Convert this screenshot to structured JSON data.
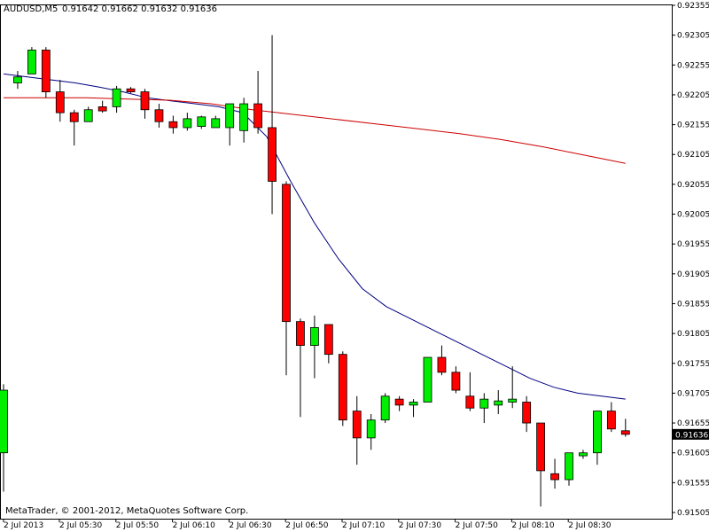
{
  "header": {
    "symbol_tf": "AUDUSD,M5",
    "ohlc": "0.91642 0.91662 0.91632 0.91636"
  },
  "footer": {
    "copyright": "MetaTrader, © 2001-2012, MetaQuotes Software Corp."
  },
  "colors": {
    "bull": "#00ee00",
    "bear": "#ff0000",
    "wick": "#000000",
    "ma_fast": "#000080",
    "ma_slow": "#cc0000",
    "price_tag_bg": "#000000",
    "price_tag_fg": "#ffffff"
  },
  "chart_data": {
    "type": "candlestick",
    "y_ticks": [
      "0.92355",
      "0.92305",
      "0.92255",
      "0.92205",
      "0.92155",
      "0.92105",
      "0.92055",
      "0.92005",
      "0.91955",
      "0.91905",
      "0.91855",
      "0.91805",
      "0.91755",
      "0.91705",
      "0.91655",
      "0.91605",
      "0.91555",
      "0.91505"
    ],
    "ylim": [
      0.91505,
      0.92355
    ],
    "current_price": "0.91636",
    "x_ticks": [
      "2 Jul 2013",
      "2 Jul 05:30",
      "2 Jul 05:50",
      "2 Jul 06:10",
      "2 Jul 06:30",
      "2 Jul 06:50",
      "2 Jul 07:10",
      "2 Jul 07:30",
      "2 Jul 07:50",
      "2 Jul 08:10",
      "2 Jul 08:30"
    ],
    "candles": [
      {
        "o": 0.91605,
        "h": 0.9172,
        "l": 0.9154,
        "c": 0.9171
      },
      {
        "o": 0.92225,
        "h": 0.92245,
        "l": 0.92215,
        "c": 0.92235
      },
      {
        "o": 0.9224,
        "h": 0.92285,
        "l": 0.9224,
        "c": 0.9228
      },
      {
        "o": 0.9228,
        "h": 0.92285,
        "l": 0.922,
        "c": 0.9221
      },
      {
        "o": 0.9221,
        "h": 0.9223,
        "l": 0.9216,
        "c": 0.92175
      },
      {
        "o": 0.92175,
        "h": 0.9218,
        "l": 0.9212,
        "c": 0.9216
      },
      {
        "o": 0.9216,
        "h": 0.92185,
        "l": 0.9216,
        "c": 0.9218
      },
      {
        "o": 0.92185,
        "h": 0.92195,
        "l": 0.92175,
        "c": 0.92178
      },
      {
        "o": 0.92185,
        "h": 0.9222,
        "l": 0.92175,
        "c": 0.92215
      },
      {
        "o": 0.92215,
        "h": 0.92218,
        "l": 0.92208,
        "c": 0.9221
      },
      {
        "o": 0.9221,
        "h": 0.92215,
        "l": 0.92165,
        "c": 0.9218
      },
      {
        "o": 0.9218,
        "h": 0.9219,
        "l": 0.9215,
        "c": 0.9216
      },
      {
        "o": 0.9216,
        "h": 0.9217,
        "l": 0.9214,
        "c": 0.9215
      },
      {
        "o": 0.9215,
        "h": 0.92175,
        "l": 0.92145,
        "c": 0.92165
      },
      {
        "o": 0.92152,
        "h": 0.9217,
        "l": 0.92148,
        "c": 0.92168
      },
      {
        "o": 0.9215,
        "h": 0.9217,
        "l": 0.9215,
        "c": 0.92165
      },
      {
        "o": 0.9215,
        "h": 0.9219,
        "l": 0.9212,
        "c": 0.9219
      },
      {
        "o": 0.92145,
        "h": 0.922,
        "l": 0.92125,
        "c": 0.9219
      },
      {
        "o": 0.9219,
        "h": 0.92245,
        "l": 0.9214,
        "c": 0.9215
      },
      {
        "o": 0.9215,
        "h": 0.92305,
        "l": 0.92005,
        "c": 0.9206
      },
      {
        "o": 0.92055,
        "h": 0.9206,
        "l": 0.91735,
        "c": 0.91825
      },
      {
        "o": 0.91825,
        "h": 0.9183,
        "l": 0.91665,
        "c": 0.91785
      },
      {
        "o": 0.91785,
        "h": 0.91835,
        "l": 0.9173,
        "c": 0.91815
      },
      {
        "o": 0.9182,
        "h": 0.9182,
        "l": 0.91755,
        "c": 0.9177
      },
      {
        "o": 0.9177,
        "h": 0.91775,
        "l": 0.9165,
        "c": 0.9166
      },
      {
        "o": 0.91675,
        "h": 0.917,
        "l": 0.91585,
        "c": 0.9163
      },
      {
        "o": 0.9163,
        "h": 0.9167,
        "l": 0.9161,
        "c": 0.9166
      },
      {
        "o": 0.9166,
        "h": 0.91705,
        "l": 0.91655,
        "c": 0.917
      },
      {
        "o": 0.91695,
        "h": 0.917,
        "l": 0.91675,
        "c": 0.91685
      },
      {
        "o": 0.91685,
        "h": 0.91695,
        "l": 0.91665,
        "c": 0.9169
      },
      {
        "o": 0.9169,
        "h": 0.91765,
        "l": 0.9169,
        "c": 0.91765
      },
      {
        "o": 0.91765,
        "h": 0.91785,
        "l": 0.91735,
        "c": 0.9174
      },
      {
        "o": 0.9174,
        "h": 0.9175,
        "l": 0.91705,
        "c": 0.9171
      },
      {
        "o": 0.917,
        "h": 0.9174,
        "l": 0.91675,
        "c": 0.9168
      },
      {
        "o": 0.9168,
        "h": 0.91705,
        "l": 0.91655,
        "c": 0.91695
      },
      {
        "o": 0.91685,
        "h": 0.9171,
        "l": 0.9167,
        "c": 0.91692
      },
      {
        "o": 0.9169,
        "h": 0.9175,
        "l": 0.9168,
        "c": 0.91695
      },
      {
        "o": 0.9169,
        "h": 0.917,
        "l": 0.9164,
        "c": 0.91655
      },
      {
        "o": 0.91655,
        "h": 0.91655,
        "l": 0.91515,
        "c": 0.91575
      },
      {
        "o": 0.9157,
        "h": 0.91595,
        "l": 0.91545,
        "c": 0.9156
      },
      {
        "o": 0.9156,
        "h": 0.91605,
        "l": 0.9155,
        "c": 0.91605
      },
      {
        "o": 0.916,
        "h": 0.9161,
        "l": 0.91595,
        "c": 0.91605
      },
      {
        "o": 0.91605,
        "h": 0.91675,
        "l": 0.91585,
        "c": 0.91675
      },
      {
        "o": 0.91675,
        "h": 0.9169,
        "l": 0.9164,
        "c": 0.91645
      },
      {
        "o": 0.91642,
        "h": 0.91662,
        "l": 0.91632,
        "c": 0.91636
      }
    ],
    "ma_fast": [
      0.9224,
      0.92235,
      0.9223,
      0.92225,
      0.92218,
      0.9221,
      0.922,
      0.92195,
      0.9219,
      0.92185,
      0.92175,
      0.92135,
      0.9206,
      0.9199,
      0.9193,
      0.9188,
      0.9185,
      0.9183,
      0.9181,
      0.9179,
      0.9177,
      0.9175,
      0.9173,
      0.91715,
      0.91705,
      0.917,
      0.91695
    ],
    "ma_slow": [
      0.922,
      0.922,
      0.922,
      0.92198,
      0.92196,
      0.9219,
      0.9218,
      0.92172,
      0.92164,
      0.92156,
      0.92148,
      0.9214,
      0.9213,
      0.92118,
      0.92104,
      0.9209
    ]
  }
}
